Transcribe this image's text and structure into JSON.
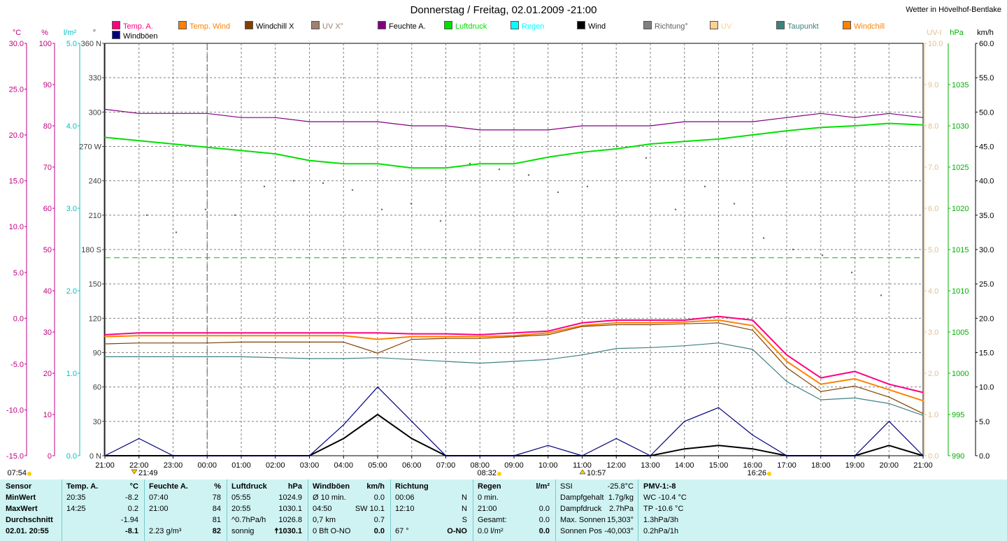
{
  "header": {
    "title": "Donnerstag / Freitag, 02.01.2009  -21:00",
    "station": "Wetter in Hövelhof-Bentlake"
  },
  "legend": [
    {
      "label": "Temp. A.",
      "color": "#ff0080"
    },
    {
      "label": "Temp. Wind",
      "color": "#ff8000"
    },
    {
      "label": "Windchill X",
      "color": "#804000"
    },
    {
      "label": "UV X°",
      "color": "#a08070"
    },
    {
      "label": "Feuchte A.",
      "color": "#800080"
    },
    {
      "label": "Luftdruck",
      "color": "#00e000"
    },
    {
      "label": "Regen",
      "color": "#00ffff"
    },
    {
      "label": "Wind",
      "color": "#000000"
    },
    {
      "label": "Richtung°",
      "color": "#808080"
    },
    {
      "label": "UV",
      "color": "#ffd090"
    },
    {
      "label": "Taupunkt",
      "color": "#408080"
    },
    {
      "label": "Windchill",
      "color": "#ff8000"
    },
    {
      "label": "Windböen",
      "color": "#000080"
    }
  ],
  "axes": {
    "temp": {
      "unit": "°C",
      "ticks": [
        "30.0",
        "25.0",
        "20.0",
        "15.0",
        "10.0",
        "5.0",
        "0.0",
        "-5.0",
        "-10.0",
        "-15.0"
      ],
      "color": "#c00080"
    },
    "hum": {
      "unit": "%",
      "ticks": [
        "100",
        "90",
        "80",
        "70",
        "60",
        "50",
        "40",
        "30",
        "20",
        "10",
        "0"
      ],
      "color": "#c00080"
    },
    "rad": {
      "unit": "l/m²",
      "ticks": [
        "5.0",
        "4.0",
        "3.0",
        "2.0",
        "1.0",
        "0.0"
      ],
      "color": "#00c0c0"
    },
    "dir": {
      "unit": "°",
      "ticks": [
        "360 N",
        "330",
        "300",
        "270 W",
        "240",
        "210",
        "180 S",
        "150",
        "120",
        "90",
        "60",
        "30",
        "0 N"
      ],
      "color": "#404040"
    },
    "uv": {
      "unit": "UV-I",
      "ticks": [
        "10.0",
        "9.0",
        "8.0",
        "7.0",
        "6.0",
        "5.0",
        "4.0",
        "3.0",
        "2.0",
        "1.0",
        "0.0"
      ],
      "color": "#e0c090"
    },
    "pres": {
      "unit": "hPa",
      "ticks": [
        "1035",
        "1030",
        "1025",
        "1020",
        "1015",
        "1010",
        "1005",
        "1000",
        "995",
        "990"
      ],
      "color": "#00b000"
    },
    "wind": {
      "unit": "km/h",
      "ticks": [
        "60.0",
        "55.0",
        "50.0",
        "45.0",
        "40.0",
        "35.0",
        "30.0",
        "25.0",
        "20.0",
        "15.0",
        "10.0",
        "5.0",
        "0.0"
      ],
      "color": "#000"
    },
    "time": [
      "21:00",
      "22:00",
      "23:00",
      "00:00",
      "01:00",
      "02:00",
      "03:00",
      "04:00",
      "05:00",
      "06:00",
      "07:00",
      "08:00",
      "09:00",
      "10:00",
      "11:00",
      "12:00",
      "13:00",
      "14:00",
      "15:00",
      "16:00",
      "17:00",
      "18:00",
      "19:00",
      "20:00",
      "21:00"
    ]
  },
  "markers": {
    "sunrise_prev": "07:54",
    "low_temp_mark": "21:49",
    "sunrise": "08:32",
    "noon_mark": "10:57",
    "sunset": "16:26"
  },
  "chart_data": {
    "type": "line",
    "x": [
      "21:00",
      "22:00",
      "23:00",
      "00:00",
      "01:00",
      "02:00",
      "03:00",
      "04:00",
      "05:00",
      "06:00",
      "07:00",
      "08:00",
      "09:00",
      "10:00",
      "11:00",
      "12:00",
      "13:00",
      "14:00",
      "15:00",
      "16:00",
      "17:00",
      "18:00",
      "19:00",
      "20:00",
      "21:00"
    ],
    "series": [
      {
        "name": "Temp. A.",
        "color": "#ff0080",
        "axis": "temp",
        "values": [
          -1.8,
          -1.6,
          -1.6,
          -1.6,
          -1.6,
          -1.6,
          -1.6,
          -1.6,
          -1.6,
          -1.7,
          -1.7,
          -1.8,
          -1.6,
          -1.4,
          -0.5,
          -0.2,
          -0.2,
          -0.2,
          0.2,
          -0.2,
          -4.0,
          -6.5,
          -5.8,
          -7.2,
          -8.1
        ]
      },
      {
        "name": "Temp. Wind",
        "color": "#ff8000",
        "axis": "temp",
        "values": [
          -2.0,
          -1.9,
          -1.9,
          -1.9,
          -1.9,
          -1.9,
          -1.9,
          -1.9,
          -2.3,
          -2.0,
          -2.0,
          -2.0,
          -1.9,
          -1.6,
          -0.8,
          -0.5,
          -0.5,
          -0.4,
          -0.2,
          -0.8,
          -4.7,
          -7.2,
          -6.6,
          -7.8,
          -9.0
        ]
      },
      {
        "name": "Windchill",
        "color": "#804000",
        "axis": "temp",
        "values": [
          -2.8,
          -2.7,
          -2.7,
          -2.7,
          -2.6,
          -2.6,
          -2.6,
          -2.6,
          -3.8,
          -2.3,
          -2.2,
          -2.2,
          -2.0,
          -1.8,
          -0.9,
          -0.7,
          -0.7,
          -0.6,
          -0.5,
          -1.3,
          -5.4,
          -8.0,
          -7.4,
          -8.6,
          -10.4
        ]
      },
      {
        "name": "Taupunkt",
        "color": "#408080",
        "axis": "temp",
        "values": [
          -4.2,
          -4.2,
          -4.2,
          -4.2,
          -4.2,
          -4.3,
          -4.4,
          -4.4,
          -4.3,
          -4.5,
          -4.7,
          -4.9,
          -4.7,
          -4.5,
          -4.0,
          -3.3,
          -3.2,
          -3.0,
          -2.7,
          -3.4,
          -6.9,
          -8.9,
          -8.7,
          -9.3,
          -10.6
        ]
      },
      {
        "name": "Feuchte A.",
        "color": "#800080",
        "axis": "hum",
        "values": [
          84,
          83,
          83,
          83,
          82,
          82,
          81,
          81,
          81,
          80,
          80,
          79,
          79,
          79,
          80,
          80,
          80,
          81,
          81,
          81,
          82,
          83,
          82,
          83,
          82
        ]
      },
      {
        "name": "Luftdruck",
        "color": "#00e000",
        "axis": "pres",
        "values": [
          1028.6,
          1028.2,
          1027.8,
          1027.4,
          1027.0,
          1026.6,
          1025.8,
          1025.4,
          1025.4,
          1024.9,
          1024.9,
          1025.4,
          1025.4,
          1026.2,
          1026.8,
          1027.2,
          1027.8,
          1028.1,
          1028.4,
          1028.9,
          1029.4,
          1029.8,
          1030.0,
          1030.3,
          1030.1
        ]
      },
      {
        "name": "Wind",
        "color": "#000000",
        "axis": "wind",
        "values": [
          0,
          0,
          0,
          0,
          0,
          0,
          0,
          2.5,
          6.0,
          2.5,
          0,
          0,
          0,
          0,
          0,
          0,
          0,
          1.0,
          1.5,
          1.0,
          0,
          0,
          0,
          1.5,
          0
        ]
      },
      {
        "name": "Windböen",
        "color": "#000080",
        "axis": "wind",
        "values": [
          0,
          2.5,
          0,
          0,
          0,
          0,
          0,
          4.5,
          10.0,
          5.0,
          0,
          0,
          0,
          1.5,
          0,
          2.5,
          0,
          5.0,
          7.0,
          3.0,
          0,
          0,
          0,
          5.0,
          0
        ]
      }
    ],
    "direction_points_deg": [
      210,
      195,
      215,
      210,
      235,
      240,
      238,
      232,
      215,
      220,
      205,
      255,
      250,
      245,
      230,
      235,
      270,
      260,
      215,
      235,
      220,
      190,
      180,
      175,
      160,
      140
    ],
    "ylim": {
      "temp": [
        -15,
        30
      ],
      "hum": [
        0,
        100
      ],
      "pres": [
        990,
        1040
      ],
      "wind": [
        0,
        60
      ],
      "dir": [
        0,
        360
      ],
      "uv": [
        0,
        10
      ]
    },
    "grid": true
  },
  "panel": {
    "sensor": {
      "h": "Sensor",
      "rows": [
        "MinWert",
        "MaxWert",
        "Durchschnitt",
        "02.01. 20:55"
      ]
    },
    "temp": {
      "h": "Temp. A.",
      "u": "°C",
      "rows": [
        [
          "20:35",
          "-8.2"
        ],
        [
          "14:25",
          "0.2"
        ],
        [
          "",
          "-1.94"
        ],
        [
          "",
          "-8.1"
        ]
      ]
    },
    "hum": {
      "h": "Feuchte A.",
      "u": "%",
      "rows": [
        [
          "07:40",
          "78"
        ],
        [
          "21:00",
          "84"
        ],
        [
          "",
          "81"
        ],
        [
          "2.23 g/m³",
          "82"
        ]
      ]
    },
    "pres": {
      "h": "Luftdruck",
      "u": "hPa",
      "rows": [
        [
          "05:55",
          "1024.9"
        ],
        [
          "20:55",
          "1030.1"
        ],
        [
          "^0.7hPa/h",
          "1026.8"
        ],
        [
          "sonnig",
          "🠅1030.1"
        ]
      ]
    },
    "wind": {
      "h": "Windböen",
      "u": "km/h",
      "rows": [
        [
          "Ø 10 min.",
          "0.0"
        ],
        [
          "04:50",
          "SW 10.1"
        ],
        [
          "0,7 km",
          "0.7"
        ],
        [
          "0 Bft O-NO",
          "0.0"
        ]
      ]
    },
    "dir": {
      "h": "Richtung",
      "u": "",
      "rows": [
        [
          "00:06",
          "N"
        ],
        [
          "12:10",
          "N"
        ],
        [
          "",
          "S"
        ],
        [
          "67 °",
          "O-NO"
        ]
      ]
    },
    "rain": {
      "h": "Regen",
      "u": "l/m²",
      "rows": [
        [
          "0 min.",
          ""
        ],
        [
          "21:00",
          "0.0"
        ],
        [
          "Gesamt:",
          "0.0"
        ],
        [
          "0.0 l/m²",
          "0.0"
        ]
      ]
    },
    "misc": {
      "h": "SSI",
      "v": "-25.8°C",
      "rows": [
        [
          "Dampfgehalt",
          "1.7g/kg"
        ],
        [
          "Dampfdruck",
          "2.7hPa"
        ],
        [
          "Max. Sonnen",
          "15,303°"
        ],
        [
          "Sonnen Pos",
          "-40,003°"
        ]
      ]
    },
    "pmv": {
      "h": "PMV-1:-8",
      "rows": [
        "WC -10.4 °C",
        "TP -10.6 °C",
        "1.3hPa/3h",
        "0.2hPa/1h"
      ]
    }
  }
}
